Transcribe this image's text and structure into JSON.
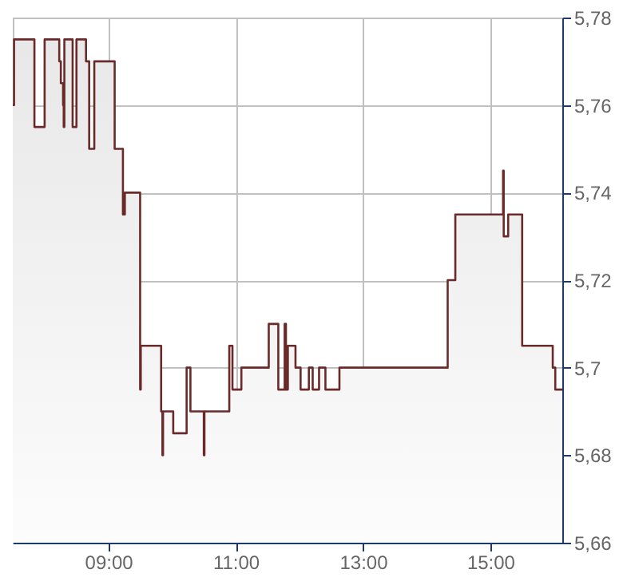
{
  "chart_data": {
    "type": "area",
    "x": [
      7.5,
      7.52,
      7.52,
      7.84,
      7.84,
      8.0,
      8.0,
      8.23,
      8.23,
      8.255,
      8.255,
      8.29,
      8.29,
      8.3,
      8.3,
      8.31,
      8.31,
      8.44,
      8.44,
      8.5,
      8.5,
      8.65,
      8.65,
      8.7,
      8.7,
      8.78,
      8.78,
      9.1,
      9.1,
      9.23,
      9.23,
      9.26,
      9.26,
      9.5,
      9.5,
      9.51,
      9.51,
      9.83,
      9.83,
      9.85,
      9.85,
      9.86,
      9.86,
      10.02,
      10.02,
      10.23,
      10.23,
      10.29,
      10.29,
      10.5,
      10.5,
      10.51,
      10.51,
      10.9,
      10.9,
      10.95,
      10.95,
      11.09,
      11.09,
      11.52,
      11.52,
      11.67,
      11.67,
      11.77,
      11.77,
      11.79,
      11.79,
      11.82,
      11.82,
      11.94,
      11.94,
      12.02,
      12.02,
      12.15,
      12.15,
      12.21,
      12.21,
      12.31,
      12.31,
      12.41,
      12.41,
      12.63,
      12.63,
      14.33,
      14.33,
      14.45,
      14.45,
      15.2,
      15.2,
      15.21,
      15.21,
      15.28,
      15.28,
      15.5,
      15.5,
      15.98,
      15.98,
      16.02,
      16.02,
      16.13
    ],
    "series": [
      {
        "color": "#6b2a2a",
        "values": [
          5.76,
          5.76,
          5.775,
          5.775,
          5.755,
          5.755,
          5.775,
          5.775,
          5.77,
          5.77,
          5.765,
          5.765,
          5.76,
          5.76,
          5.755,
          5.755,
          5.775,
          5.775,
          5.755,
          5.755,
          5.775,
          5.775,
          5.77,
          5.77,
          5.75,
          5.75,
          5.77,
          5.77,
          5.75,
          5.75,
          5.735,
          5.735,
          5.74,
          5.74,
          5.695,
          5.695,
          5.705,
          5.705,
          5.69,
          5.69,
          5.68,
          5.68,
          5.69,
          5.69,
          5.685,
          5.685,
          5.7,
          5.7,
          5.69,
          5.69,
          5.68,
          5.68,
          5.69,
          5.69,
          5.705,
          5.705,
          5.695,
          5.695,
          5.7,
          5.7,
          5.71,
          5.71,
          5.695,
          5.695,
          5.71,
          5.71,
          5.695,
          5.695,
          5.705,
          5.705,
          5.7,
          5.7,
          5.695,
          5.695,
          5.7,
          5.7,
          5.695,
          5.695,
          5.7,
          5.7,
          5.695,
          5.695,
          5.7,
          5.7,
          5.72,
          5.72,
          5.735,
          5.735,
          5.745,
          5.745,
          5.73,
          5.73,
          5.735,
          5.735,
          5.705,
          5.705,
          5.7,
          5.7,
          5.695,
          5.695
        ]
      }
    ],
    "xlim": [
      7.5,
      16.13
    ],
    "xticks": [
      {
        "value": 9,
        "label": "09:00"
      },
      {
        "value": 11,
        "label": "11:00"
      },
      {
        "value": 13,
        "label": "13:00"
      },
      {
        "value": 15,
        "label": "15:00"
      }
    ],
    "ylim": [
      5.66,
      5.78
    ],
    "yticks": [
      {
        "value": 5.66,
        "label": "5,66"
      },
      {
        "value": 5.68,
        "label": "5,68"
      },
      {
        "value": 5.7,
        "label": "5,7"
      },
      {
        "value": 5.72,
        "label": "5,72"
      },
      {
        "value": 5.74,
        "label": "5,74"
      },
      {
        "value": 5.76,
        "label": "5,76"
      },
      {
        "value": 5.78,
        "label": "5,78"
      }
    ],
    "grid": true
  }
}
